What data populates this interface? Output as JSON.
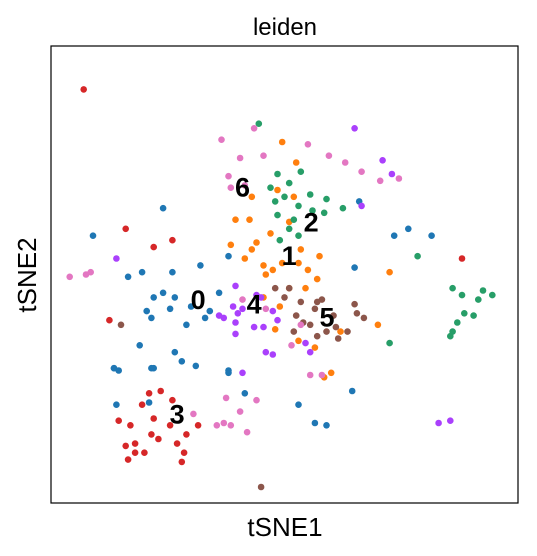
{
  "chart_data": {
    "type": "scatter",
    "title": "leiden",
    "xlabel": "tSNE1",
    "ylabel": "tSNE2",
    "xlim": [
      0,
      100
    ],
    "ylim": [
      0,
      100
    ],
    "grid": false,
    "legend": "on data",
    "cluster_colors": {
      "0": "#1f77b4",
      "1": "#ff7f0e",
      "2": "#279e68",
      "3": "#d62728",
      "4": "#aa40fc",
      "5": "#8c564b",
      "6": "#e377c2"
    },
    "cluster_labels": [
      {
        "cluster": "0",
        "text": "0",
        "x": 31.5,
        "y": 44.0
      },
      {
        "cluster": "1",
        "text": "1",
        "x": 51.0,
        "y": 53.6
      },
      {
        "cluster": "2",
        "text": "2",
        "x": 55.7,
        "y": 61.0
      },
      {
        "cluster": "3",
        "text": "3",
        "x": 27.0,
        "y": 19.0
      },
      {
        "cluster": "4",
        "text": "4",
        "x": 43.5,
        "y": 43.0
      },
      {
        "cluster": "5",
        "text": "5",
        "x": 59.1,
        "y": 40.2
      },
      {
        "cluster": "6",
        "text": "6",
        "x": 41.0,
        "y": 68.6
      }
    ],
    "series": [
      {
        "cluster": "0",
        "points": [
          [
            9,
            58.5
          ],
          [
            24,
            64.5
          ],
          [
            19.5,
            50.5
          ],
          [
            16.5,
            49.5
          ],
          [
            22,
            45
          ],
          [
            26.5,
            45
          ],
          [
            24,
            46
          ],
          [
            26,
            50.5
          ],
          [
            32,
            52
          ],
          [
            20.5,
            42
          ],
          [
            21.5,
            40.5
          ],
          [
            25.5,
            42.5
          ],
          [
            30,
            43
          ],
          [
            33,
            40.5
          ],
          [
            19,
            34.5
          ],
          [
            28,
            31
          ],
          [
            14.5,
            29
          ],
          [
            13.5,
            29.5
          ],
          [
            21.5,
            29.5
          ],
          [
            26.5,
            33
          ],
          [
            31,
            30
          ],
          [
            13.5,
            29.5
          ],
          [
            22,
            29.5
          ],
          [
            29,
            39
          ],
          [
            38,
            54
          ],
          [
            34,
            42
          ],
          [
            36,
            46
          ],
          [
            14,
            21.5
          ],
          [
            21,
            22
          ],
          [
            38,
            29
          ],
          [
            38,
            28.5
          ],
          [
            41.5,
            24
          ],
          [
            53,
            21.5
          ],
          [
            56.5,
            17.5
          ],
          [
            59,
            17
          ],
          [
            64.5,
            24.5
          ],
          [
            65,
            51.5
          ],
          [
            73.5,
            58.5
          ],
          [
            66,
            66
          ],
          [
            81.5,
            58.5
          ],
          [
            76.5,
            60
          ]
        ]
      },
      {
        "cluster": "1",
        "points": [
          [
            49.5,
            79
          ],
          [
            52.5,
            74.5
          ],
          [
            48.5,
            68.5
          ],
          [
            52,
            67
          ],
          [
            51,
            61.5
          ],
          [
            47,
            59
          ],
          [
            44,
            57
          ],
          [
            38.5,
            56.5
          ],
          [
            41.5,
            53.5
          ],
          [
            45.5,
            52
          ],
          [
            47.5,
            51
          ],
          [
            49.5,
            52.5
          ],
          [
            46,
            50
          ],
          [
            53.5,
            55.5
          ],
          [
            53,
            52.5
          ],
          [
            57.5,
            54
          ],
          [
            55,
            51
          ],
          [
            57,
            49
          ],
          [
            54.5,
            47
          ],
          [
            51,
            47
          ],
          [
            45.5,
            45
          ],
          [
            49,
            43
          ],
          [
            43,
            55.5
          ],
          [
            39.5,
            62
          ],
          [
            42.5,
            62
          ],
          [
            43,
            67
          ],
          [
            48,
            38
          ],
          [
            53,
            35.5
          ],
          [
            56.5,
            34
          ],
          [
            62,
            37.5
          ],
          [
            60,
            28.5
          ],
          [
            58.5,
            27.5
          ],
          [
            72.5,
            50.5
          ],
          [
            70,
            39
          ]
        ]
      },
      {
        "cluster": "2",
        "points": [
          [
            44.5,
            83
          ],
          [
            48.5,
            72
          ],
          [
            51,
            70
          ],
          [
            53.5,
            72.5
          ],
          [
            47,
            69
          ],
          [
            48,
            66
          ],
          [
            50,
            67
          ],
          [
            53,
            65
          ],
          [
            55.5,
            67.5
          ],
          [
            56,
            64
          ],
          [
            52,
            62
          ],
          [
            48.5,
            63
          ],
          [
            51,
            60
          ],
          [
            49,
            57.5
          ],
          [
            53,
            58.5
          ],
          [
            58.5,
            63.5
          ],
          [
            59,
            66.5
          ],
          [
            62.5,
            64.5
          ],
          [
            78.5,
            54
          ],
          [
            86,
            47
          ],
          [
            88,
            45.5
          ],
          [
            92.5,
            46.5
          ],
          [
            94.5,
            45.5
          ],
          [
            91.5,
            44.5
          ],
          [
            90.5,
            41
          ],
          [
            88.5,
            41.5
          ],
          [
            86,
            37.5
          ],
          [
            87,
            39.5
          ],
          [
            85.5,
            36.5
          ],
          [
            72.5,
            35
          ]
        ]
      },
      {
        "cluster": "3",
        "points": [
          [
            7,
            90.5
          ],
          [
            16,
            60
          ],
          [
            22,
            56
          ],
          [
            26,
            57.5
          ],
          [
            12.5,
            40
          ],
          [
            23.5,
            24.5
          ],
          [
            21,
            24
          ],
          [
            19.5,
            21.5
          ],
          [
            26,
            22.5
          ],
          [
            22,
            18.5
          ],
          [
            17,
            17
          ],
          [
            14.5,
            18
          ],
          [
            21.5,
            15
          ],
          [
            25.5,
            17
          ],
          [
            29,
            15
          ],
          [
            31.5,
            17
          ],
          [
            18,
            13
          ],
          [
            20,
            11
          ],
          [
            16,
            12.5
          ],
          [
            16.5,
            9.5
          ],
          [
            18,
            11
          ],
          [
            23,
            14
          ],
          [
            27,
            13
          ],
          [
            28.5,
            11
          ],
          [
            28,
            9
          ],
          [
            88,
            53.5
          ]
        ]
      },
      {
        "cluster": "4",
        "points": [
          [
            14,
            53.5
          ],
          [
            39.5,
            47.5
          ],
          [
            39,
            43
          ],
          [
            44,
            45.5
          ],
          [
            45,
            45
          ],
          [
            41,
            42.5
          ],
          [
            40,
            41.5
          ],
          [
            37,
            40.5
          ],
          [
            39.5,
            39.5
          ],
          [
            36,
            41
          ],
          [
            43.5,
            38.5
          ],
          [
            45.5,
            38.5
          ],
          [
            39.5,
            37
          ],
          [
            47.5,
            42
          ],
          [
            48.5,
            40
          ],
          [
            41,
            28.5
          ],
          [
            46,
            33
          ],
          [
            47.5,
            32.5
          ],
          [
            55.5,
            33
          ],
          [
            54.5,
            35
          ],
          [
            66.5,
            65
          ],
          [
            73,
            72
          ],
          [
            85.5,
            18
          ],
          [
            83,
            17.5
          ],
          [
            65,
            82
          ],
          [
            71,
            75
          ]
        ]
      },
      {
        "cluster": "5",
        "points": [
          [
            48,
            47
          ],
          [
            51,
            47
          ],
          [
            50,
            45
          ],
          [
            53.5,
            44
          ],
          [
            52.5,
            41
          ],
          [
            54,
            39.5
          ],
          [
            56.5,
            42.5
          ],
          [
            58,
            44.5
          ],
          [
            60.5,
            41
          ],
          [
            61,
            38.5
          ],
          [
            59,
            37.5
          ],
          [
            61.5,
            36
          ],
          [
            57,
            36.5
          ],
          [
            63.5,
            37.5
          ],
          [
            65.5,
            41.5
          ],
          [
            67,
            40.5
          ],
          [
            65,
            43.5
          ],
          [
            57,
            44
          ],
          [
            55.5,
            39
          ],
          [
            52,
            37.5
          ],
          [
            45,
            3.5
          ],
          [
            15,
            39
          ]
        ]
      },
      {
        "cluster": "6",
        "points": [
          [
            7.5,
            50
          ],
          [
            4,
            49.5
          ],
          [
            8.5,
            50.5
          ],
          [
            36.5,
            79.5
          ],
          [
            40.5,
            75.5
          ],
          [
            43.5,
            82
          ],
          [
            38,
            71.5
          ],
          [
            38.5,
            69
          ],
          [
            41.5,
            69.5
          ],
          [
            45.5,
            76
          ],
          [
            55,
            78.5
          ],
          [
            59.5,
            76
          ],
          [
            63,
            74.5
          ],
          [
            66.5,
            72.5
          ],
          [
            70.5,
            70.5
          ],
          [
            74.5,
            71
          ],
          [
            41,
            44.5
          ],
          [
            46,
            42.5
          ],
          [
            53.5,
            39
          ],
          [
            51.5,
            34.5
          ],
          [
            58,
            28
          ],
          [
            55.5,
            28
          ],
          [
            37.5,
            23
          ],
          [
            44,
            22.5
          ],
          [
            40.5,
            20
          ],
          [
            37,
            17.5
          ],
          [
            38.5,
            17
          ],
          [
            42,
            15.5
          ],
          [
            35.5,
            17
          ],
          [
            30.5,
            19.5
          ]
        ]
      }
    ]
  }
}
